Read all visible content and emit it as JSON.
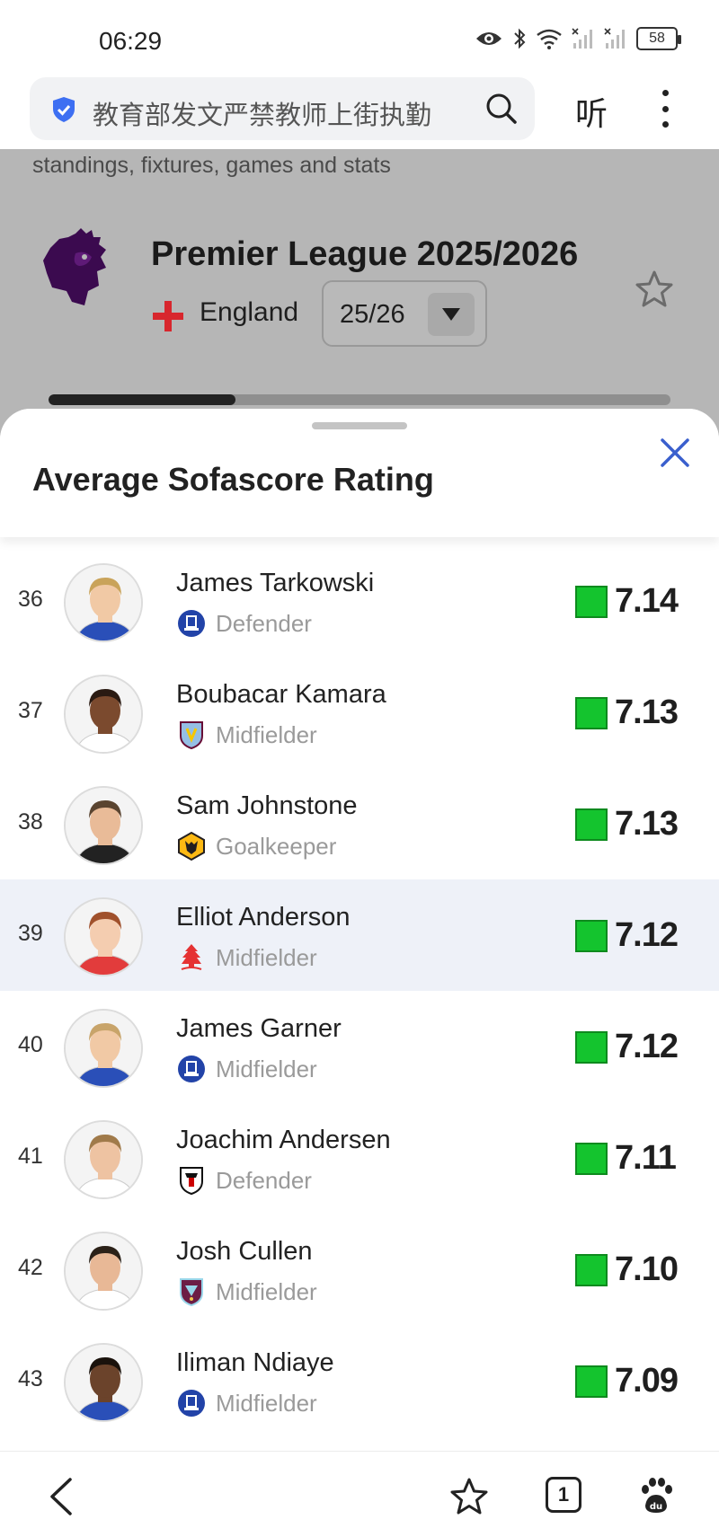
{
  "status_bar": {
    "time": "06:29",
    "battery": "58",
    "icons": [
      "eye-icon",
      "bluetooth-icon",
      "wifi-icon",
      "signal-icon",
      "signal-icon",
      "battery-icon"
    ]
  },
  "browser": {
    "url_text": "教育部发文严禁教师上街执勤",
    "listen_label": "听",
    "icons": [
      "shield-icon",
      "search-icon",
      "more-icon"
    ]
  },
  "background_page": {
    "subtitle": "standings, fixtures, games and stats",
    "league_title": "Premier League 2025/2026",
    "country": "England",
    "season": "25/26",
    "progress_fraction": 0.3
  },
  "sheet": {
    "title": "Average Sofascore Rating",
    "rating_color": "#14c42e",
    "highlight_color": "#eef1f8",
    "players": [
      {
        "rank": "36",
        "name": "James Tarkowski",
        "position": "Defender",
        "club": "everton",
        "rating": "7.14",
        "highlight": false
      },
      {
        "rank": "37",
        "name": "Boubacar Kamara",
        "position": "Midfielder",
        "club": "aston-villa",
        "rating": "7.13",
        "highlight": false
      },
      {
        "rank": "38",
        "name": "Sam Johnstone",
        "position": "Goalkeeper",
        "club": "wolves",
        "rating": "7.13",
        "highlight": false
      },
      {
        "rank": "39",
        "name": "Elliot Anderson",
        "position": "Midfielder",
        "club": "nottingham-forest",
        "rating": "7.12",
        "highlight": true
      },
      {
        "rank": "40",
        "name": "James Garner",
        "position": "Midfielder",
        "club": "everton",
        "rating": "7.12",
        "highlight": false
      },
      {
        "rank": "41",
        "name": "Joachim Andersen",
        "position": "Defender",
        "club": "fulham",
        "rating": "7.11",
        "highlight": false
      },
      {
        "rank": "42",
        "name": "Josh Cullen",
        "position": "Midfielder",
        "club": "burnley",
        "rating": "7.10",
        "highlight": false
      },
      {
        "rank": "43",
        "name": "Iliman Ndiaye",
        "position": "Midfielder",
        "club": "everton",
        "rating": "7.09",
        "highlight": false
      }
    ]
  },
  "bottom_nav": {
    "tab_count": "1",
    "icons": [
      "back-icon",
      "bookmark-star-icon",
      "tabs-icon",
      "baidu-paw-icon"
    ]
  }
}
